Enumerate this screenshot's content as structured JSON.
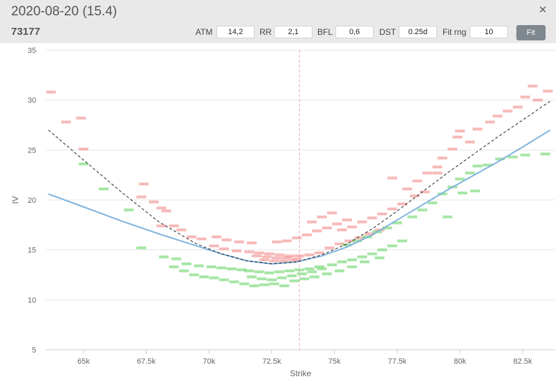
{
  "header": {
    "title": "2020-08-20 (15.4)",
    "subtitle": "73177",
    "close_icon": "close-icon"
  },
  "controls": {
    "atm_label": "ATM",
    "atm_value": "14,2",
    "rr_label": "RR",
    "rr_value": "2,1",
    "bfl_label": "BFL",
    "bfl_value": "0,6",
    "dst_label": "DST",
    "dst_value": "0.25d",
    "fitrng_label": "Fit rng",
    "fitrng_value": "10",
    "fit_button": "Fit"
  },
  "chart_data": {
    "type": "scatter",
    "xlabel": "Strike",
    "ylabel": "IV",
    "xlim": [
      63500,
      83800
    ],
    "ylim": [
      5,
      35
    ],
    "xticks": [
      65000,
      67500,
      70000,
      72500,
      75000,
      77500,
      80000,
      82500
    ],
    "xtick_labels": [
      "65k",
      "67.5k",
      "70k",
      "72.5k",
      "75k",
      "77.5k",
      "80k",
      "82.5k"
    ],
    "yticks": [
      5,
      10,
      15,
      20,
      25,
      30,
      35
    ],
    "grid": "horizontal",
    "atm_strike": 73600,
    "colors": {
      "ask": "#f08080",
      "bid": "#5ccf5c",
      "fit_curve": "#7fb3de",
      "smile": "#222222",
      "atm_line": "#f4a0b0"
    },
    "blue_fit": [
      [
        63600,
        20.6
      ],
      [
        65000,
        19.3
      ],
      [
        66500,
        17.9
      ],
      [
        68000,
        16.6
      ],
      [
        69500,
        15.4
      ],
      [
        70500,
        14.6
      ],
      [
        71500,
        13.9
      ],
      [
        72500,
        13.6
      ],
      [
        73500,
        13.8
      ],
      [
        74500,
        14.4
      ],
      [
        75500,
        15.3
      ],
      [
        76500,
        16.5
      ],
      [
        77500,
        18.0
      ],
      [
        78500,
        19.5
      ],
      [
        79500,
        21.0
      ],
      [
        80500,
        22.4
      ],
      [
        81500,
        23.8
      ],
      [
        82500,
        25.3
      ],
      [
        83600,
        27.0
      ]
    ],
    "dashed_smile": [
      [
        63600,
        27.0
      ],
      [
        65000,
        24.0
      ],
      [
        66500,
        20.8
      ],
      [
        68000,
        17.8
      ],
      [
        69500,
        15.6
      ],
      [
        70500,
        14.6
      ],
      [
        71500,
        13.9
      ],
      [
        72500,
        13.6
      ],
      [
        73500,
        13.8
      ],
      [
        74500,
        14.5
      ],
      [
        75500,
        15.6
      ],
      [
        76500,
        17.1
      ],
      [
        77500,
        18.9
      ],
      [
        78500,
        20.8
      ],
      [
        79500,
        22.7
      ],
      [
        80500,
        24.5
      ],
      [
        81500,
        26.3
      ],
      [
        82500,
        28.0
      ],
      [
        83600,
        29.9
      ]
    ],
    "ask_points": [
      [
        63700,
        30.8
      ],
      [
        64300,
        27.8
      ],
      [
        65000,
        25.1
      ],
      [
        64900,
        28.2
      ],
      [
        67400,
        21.6
      ],
      [
        67300,
        20.3
      ],
      [
        67800,
        19.8
      ],
      [
        68100,
        19.2
      ],
      [
        68300,
        18.9
      ],
      [
        68100,
        17.4
      ],
      [
        68600,
        17.4
      ],
      [
        68900,
        17.0
      ],
      [
        69300,
        16.3
      ],
      [
        69700,
        16.1
      ],
      [
        70300,
        16.3
      ],
      [
        70700,
        16.0
      ],
      [
        71200,
        15.8
      ],
      [
        71700,
        15.7
      ],
      [
        70200,
        15.4
      ],
      [
        70600,
        15.1
      ],
      [
        71100,
        14.9
      ],
      [
        71600,
        14.8
      ],
      [
        72000,
        14.7
      ],
      [
        72400,
        14.6
      ],
      [
        72800,
        14.5
      ],
      [
        73200,
        14.4
      ],
      [
        73600,
        14.4
      ],
      [
        74000,
        14.5
      ],
      [
        74400,
        14.7
      ],
      [
        71900,
        14.4
      ],
      [
        72300,
        14.3
      ],
      [
        72700,
        14.2
      ],
      [
        73100,
        14.2
      ],
      [
        73500,
        14.1
      ],
      [
        72200,
        14.0
      ],
      [
        72600,
        13.9
      ],
      [
        73000,
        13.9
      ],
      [
        73400,
        13.9
      ],
      [
        72700,
        15.8
      ],
      [
        73100,
        15.9
      ],
      [
        73500,
        16.2
      ],
      [
        73900,
        16.5
      ],
      [
        74300,
        16.9
      ],
      [
        74700,
        17.2
      ],
      [
        75100,
        17.6
      ],
      [
        75500,
        18.0
      ],
      [
        74100,
        17.8
      ],
      [
        74500,
        18.3
      ],
      [
        74900,
        18.7
      ],
      [
        75300,
        17.0
      ],
      [
        75700,
        17.3
      ],
      [
        76100,
        17.8
      ],
      [
        76500,
        18.2
      ],
      [
        76900,
        18.6
      ],
      [
        77300,
        19.1
      ],
      [
        77700,
        19.6
      ],
      [
        77300,
        22.2
      ],
      [
        77900,
        21.1
      ],
      [
        78300,
        21.9
      ],
      [
        78700,
        22.7
      ],
      [
        79100,
        23.3
      ],
      [
        79300,
        24.2
      ],
      [
        79700,
        25.1
      ],
      [
        79900,
        26.3
      ],
      [
        80000,
        26.9
      ],
      [
        80400,
        25.8
      ],
      [
        80700,
        27.1
      ],
      [
        81200,
        27.8
      ],
      [
        81500,
        28.4
      ],
      [
        81900,
        28.9
      ],
      [
        82300,
        29.3
      ],
      [
        82600,
        30.3
      ],
      [
        82900,
        31.4
      ],
      [
        83500,
        30.9
      ],
      [
        83100,
        30.0
      ],
      [
        79100,
        22.7
      ],
      [
        78600,
        20.8
      ],
      [
        78200,
        20.4
      ],
      [
        76800,
        17.0
      ],
      [
        76400,
        16.6
      ],
      [
        76000,
        16.2
      ],
      [
        75600,
        15.9
      ],
      [
        75200,
        15.6
      ],
      [
        74800,
        15.2
      ]
    ],
    "bid_points": [
      [
        65000,
        23.6
      ],
      [
        65800,
        21.1
      ],
      [
        66800,
        19.0
      ],
      [
        67300,
        15.2
      ],
      [
        68200,
        14.3
      ],
      [
        68700,
        14.1
      ],
      [
        69100,
        13.6
      ],
      [
        69600,
        13.4
      ],
      [
        70100,
        13.3
      ],
      [
        70500,
        13.2
      ],
      [
        70900,
        13.1
      ],
      [
        71300,
        13.0
      ],
      [
        69400,
        12.5
      ],
      [
        69800,
        12.3
      ],
      [
        70200,
        12.2
      ],
      [
        70600,
        12.0
      ],
      [
        71000,
        11.8
      ],
      [
        71400,
        11.6
      ],
      [
        71800,
        11.4
      ],
      [
        72200,
        11.5
      ],
      [
        72600,
        11.6
      ],
      [
        73000,
        11.4
      ],
      [
        71600,
        12.9
      ],
      [
        72000,
        12.8
      ],
      [
        72400,
        12.7
      ],
      [
        72800,
        12.8
      ],
      [
        73200,
        12.9
      ],
      [
        73600,
        13.0
      ],
      [
        74000,
        13.1
      ],
      [
        74400,
        13.3
      ],
      [
        71700,
        12.3
      ],
      [
        72100,
        12.1
      ],
      [
        72500,
        12.0
      ],
      [
        72900,
        12.2
      ],
      [
        73300,
        12.4
      ],
      [
        73700,
        12.6
      ],
      [
        74100,
        12.8
      ],
      [
        74500,
        13.1
      ],
      [
        74900,
        13.5
      ],
      [
        75300,
        13.8
      ],
      [
        75700,
        14.0
      ],
      [
        76100,
        14.3
      ],
      [
        76500,
        14.6
      ],
      [
        76900,
        15.0
      ],
      [
        77300,
        15.4
      ],
      [
        77700,
        15.9
      ],
      [
        75500,
        15.5
      ],
      [
        75900,
        15.9
      ],
      [
        76300,
        16.3
      ],
      [
        76700,
        16.8
      ],
      [
        77100,
        17.2
      ],
      [
        77500,
        17.7
      ],
      [
        78100,
        18.3
      ],
      [
        78500,
        19.0
      ],
      [
        78900,
        19.7
      ],
      [
        79300,
        20.6
      ],
      [
        79700,
        21.3
      ],
      [
        80000,
        22.1
      ],
      [
        80400,
        22.7
      ],
      [
        80700,
        23.4
      ],
      [
        81100,
        23.5
      ],
      [
        81600,
        24.1
      ],
      [
        82100,
        24.3
      ],
      [
        82600,
        24.5
      ],
      [
        83400,
        24.6
      ],
      [
        80100,
        20.7
      ],
      [
        80600,
        20.9
      ],
      [
        79500,
        18.3
      ],
      [
        76800,
        14.2
      ],
      [
        76200,
        13.8
      ],
      [
        75700,
        13.3
      ],
      [
        75200,
        12.9
      ],
      [
        74700,
        12.6
      ],
      [
        74200,
        12.3
      ],
      [
        73800,
        12.1
      ],
      [
        73400,
        11.9
      ],
      [
        68600,
        13.3
      ],
      [
        69000,
        12.9
      ]
    ]
  }
}
